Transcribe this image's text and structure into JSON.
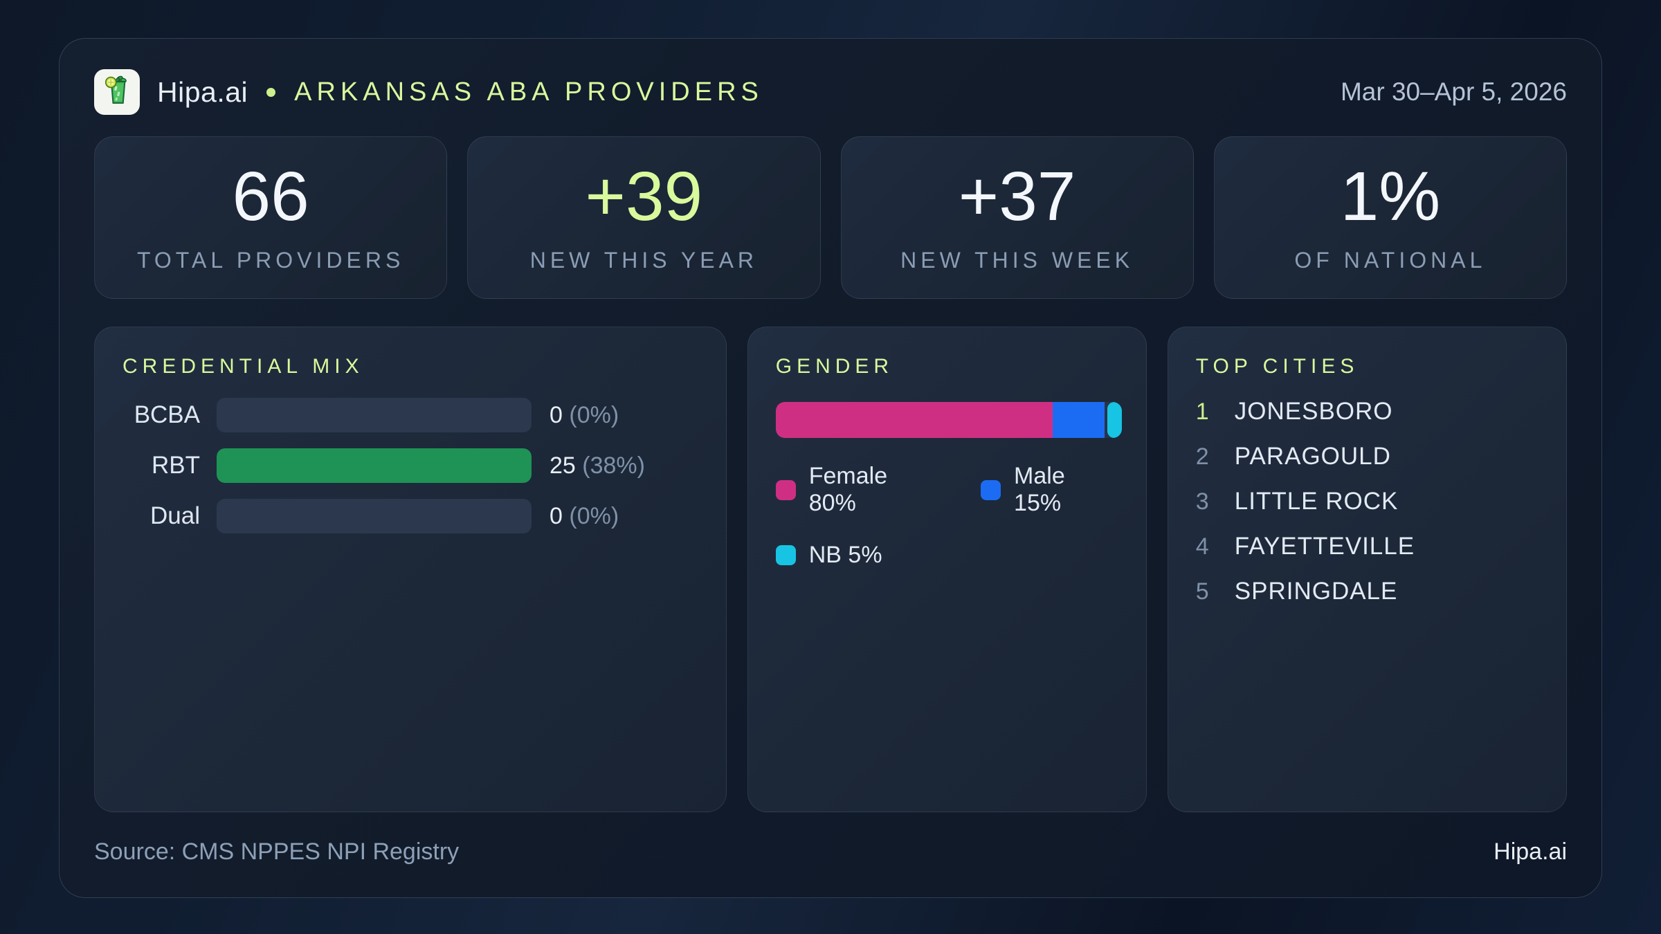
{
  "header": {
    "brand": "Hipa.ai",
    "title": "ARKANSAS ABA PROVIDERS",
    "date_range": "Mar 30–Apr 5, 2026"
  },
  "stats": [
    {
      "value": "66",
      "label": "TOTAL PROVIDERS"
    },
    {
      "value": "+39",
      "label": "NEW THIS YEAR"
    },
    {
      "value": "+37",
      "label": "NEW THIS WEEK"
    },
    {
      "value": "1%",
      "label": "OF NATIONAL"
    }
  ],
  "credential_mix": {
    "title": "CREDENTIAL MIX",
    "rows": [
      {
        "label": "BCBA",
        "count": 0,
        "percent": 0,
        "count_display": "0",
        "pct_display": "(0%)",
        "bar_pct": 0,
        "bar_color": "#1f9355"
      },
      {
        "label": "RBT",
        "count": 25,
        "percent": 38,
        "count_display": "25",
        "pct_display": "(38%)",
        "bar_pct": 100,
        "bar_color": "#1f9355"
      },
      {
        "label": "Dual",
        "count": 0,
        "percent": 0,
        "count_display": "0",
        "pct_display": "(0%)",
        "bar_pct": 0,
        "bar_color": "#1f9355"
      }
    ]
  },
  "gender": {
    "title": "GENDER",
    "segments": [
      {
        "label": "Female",
        "pct": 80,
        "color": "#cf2f83",
        "legend_label": "Female 80%"
      },
      {
        "label": "Male",
        "pct": 15,
        "color": "#1b6cf2",
        "legend_label": "Male 15%"
      },
      {
        "label": "NB",
        "pct": 5,
        "color": "#17c4e3",
        "legend_label": "NB 5%"
      }
    ]
  },
  "top_cities": {
    "title": "TOP CITIES",
    "items": [
      {
        "rank": "1",
        "city": "JONESBORO"
      },
      {
        "rank": "2",
        "city": "PARAGOULD"
      },
      {
        "rank": "3",
        "city": "LITTLE ROCK"
      },
      {
        "rank": "4",
        "city": "FAYETTEVILLE"
      },
      {
        "rank": "5",
        "city": "SPRINGDALE"
      }
    ]
  },
  "footer": {
    "source": "Source: CMS NPPES NPI Registry",
    "brand": "Hipa.ai"
  },
  "colors": {
    "accent_lime": "#d9f99d",
    "bar_green": "#1f9355",
    "female_pink": "#cf2f83",
    "male_blue": "#1b6cf2",
    "nb_cyan": "#17c4e3",
    "panel_bg": "#1e2a3b",
    "page_bg": "#0e1a2c",
    "muted_text": "#8b9db4"
  },
  "chart_data": [
    {
      "type": "bar",
      "title": "CREDENTIAL MIX",
      "orientation": "horizontal",
      "categories": [
        "BCBA",
        "RBT",
        "Dual"
      ],
      "values": [
        0,
        25,
        0
      ],
      "percents": [
        0,
        38,
        0
      ],
      "value_labels": [
        "0 (0%)",
        "25 (38%)",
        "0 (0%)"
      ],
      "bar_color": "#1f9355",
      "note": "bar lengths normalized to max value; RBT bar fills full track"
    },
    {
      "type": "bar",
      "subtype": "stacked-percent",
      "title": "GENDER",
      "segments": [
        {
          "label": "Female",
          "value": 80,
          "color": "#cf2f83"
        },
        {
          "label": "Male",
          "value": 15,
          "color": "#1b6cf2"
        },
        {
          "label": "NB",
          "value": 5,
          "color": "#17c4e3"
        }
      ],
      "legend_position": "below"
    },
    {
      "type": "table",
      "title": "TOP CITIES",
      "columns": [
        "rank",
        "city"
      ],
      "rows": [
        [
          1,
          "JONESBORO"
        ],
        [
          2,
          "PARAGOULD"
        ],
        [
          3,
          "LITTLE ROCK"
        ],
        [
          4,
          "FAYETTEVILLE"
        ],
        [
          5,
          "SPRINGDALE"
        ]
      ]
    }
  ]
}
